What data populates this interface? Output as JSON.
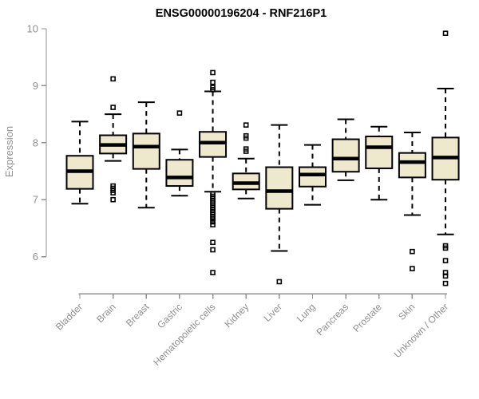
{
  "chart_data": {
    "type": "boxplot",
    "title": "ENSG00000196204 - RNF216P1",
    "ylabel": "Expression",
    "xlabel": "",
    "yticks": [
      6,
      7,
      8,
      9,
      10
    ],
    "ylim": [
      5.3,
      10.1
    ],
    "grid": false,
    "legend": "none",
    "categories": [
      "Bladder",
      "Brain",
      "Breast",
      "Gastric",
      "Hematopoietic cells",
      "Kidney",
      "Liver",
      "Lung",
      "Pancreas",
      "Prostate",
      "Skin",
      "Unknown / Other"
    ],
    "boxes": [
      {
        "category": "Bladder",
        "low": 6.93,
        "q1": 7.19,
        "median": 7.5,
        "q3": 7.77,
        "high": 8.37,
        "outliers": []
      },
      {
        "category": "Brain",
        "low": 7.68,
        "q1": 7.81,
        "median": 7.96,
        "q3": 8.13,
        "high": 8.5,
        "outliers": [
          9.12,
          8.62,
          7.24,
          7.2,
          7.16,
          7.12,
          7.0
        ]
      },
      {
        "category": "Breast",
        "low": 6.86,
        "q1": 7.54,
        "median": 7.93,
        "q3": 8.16,
        "high": 8.71,
        "outliers": []
      },
      {
        "category": "Gastric",
        "low": 7.07,
        "q1": 7.24,
        "median": 7.39,
        "q3": 7.7,
        "high": 7.88,
        "outliers": [
          8.52
        ]
      },
      {
        "category": "Hematopoietic cells",
        "low": 7.14,
        "q1": 7.75,
        "median": 8.0,
        "q3": 8.19,
        "high": 8.9,
        "outliers": [
          9.23,
          9.06,
          8.97,
          8.93,
          7.1,
          7.06,
          7.02,
          6.98,
          6.94,
          6.9,
          6.86,
          6.82,
          6.78,
          6.74,
          6.7,
          6.66,
          6.61,
          6.56,
          6.25,
          6.12,
          5.72
        ]
      },
      {
        "category": "Kidney",
        "low": 7.02,
        "q1": 7.18,
        "median": 7.29,
        "q3": 7.46,
        "high": 7.72,
        "outliers": [
          8.31,
          8.12,
          8.08,
          7.89,
          7.85
        ]
      },
      {
        "category": "Liver",
        "low": 6.1,
        "q1": 6.84,
        "median": 7.15,
        "q3": 7.57,
        "high": 8.31,
        "outliers": [
          5.56
        ]
      },
      {
        "category": "Lung",
        "low": 6.91,
        "q1": 7.23,
        "median": 7.44,
        "q3": 7.57,
        "high": 7.96,
        "outliers": []
      },
      {
        "category": "Pancreas",
        "low": 7.34,
        "q1": 7.49,
        "median": 7.72,
        "q3": 8.06,
        "high": 8.41,
        "outliers": []
      },
      {
        "category": "Prostate",
        "low": 7.0,
        "q1": 7.55,
        "median": 7.92,
        "q3": 8.11,
        "high": 8.28,
        "outliers": []
      },
      {
        "category": "Skin",
        "low": 6.73,
        "q1": 7.39,
        "median": 7.66,
        "q3": 7.82,
        "high": 8.18,
        "outliers": [
          6.09,
          5.79
        ]
      },
      {
        "category": "Unknown / Other",
        "low": 6.39,
        "q1": 7.35,
        "median": 7.74,
        "q3": 8.09,
        "high": 8.95,
        "outliers": [
          9.92,
          6.19,
          6.15,
          5.93,
          5.72,
          5.66,
          5.53
        ]
      }
    ],
    "colors": {
      "box_fill": "#EEE8CD",
      "box_stroke": "#000000",
      "median": "#000000",
      "axis": "#8f8f8f",
      "tick_label": "#8f8f8f",
      "title": "#000000",
      "background": "#ffffff"
    }
  }
}
